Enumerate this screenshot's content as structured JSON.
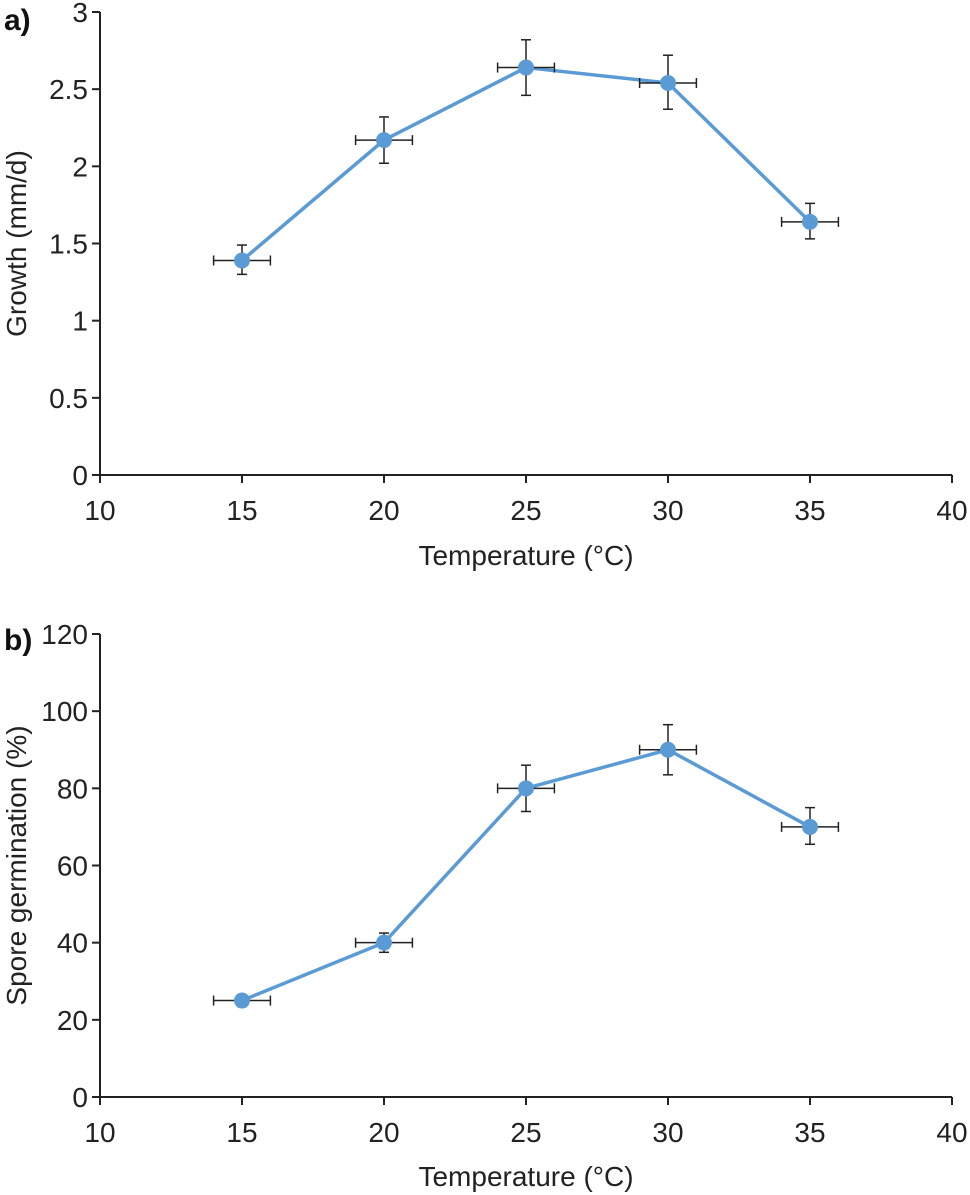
{
  "chart_data": [
    {
      "type": "line",
      "panel_label": "a)",
      "xlabel": "Temperature (°C)",
      "ylabel": "Growth (mm/d)",
      "xlim": [
        10,
        40
      ],
      "ylim": [
        0,
        3
      ],
      "xticks": [
        10,
        15,
        20,
        25,
        30,
        35,
        40
      ],
      "yticks": [
        0,
        0.5,
        1,
        1.5,
        2,
        2.5,
        3
      ],
      "ytick_labels": [
        "0",
        "0.5",
        "1",
        "1.5",
        "2",
        "2.5",
        "3"
      ],
      "grid": false,
      "color": "#5b9bd5",
      "x": [
        15,
        20,
        25,
        30,
        35
      ],
      "y": [
        1.39,
        2.17,
        2.64,
        2.54,
        1.64
      ],
      "x_err": [
        1,
        1,
        1,
        1,
        1
      ],
      "y_err_low": [
        0.09,
        0.15,
        0.18,
        0.17,
        0.11
      ],
      "y_err_high": [
        0.1,
        0.15,
        0.18,
        0.18,
        0.12
      ]
    },
    {
      "type": "line",
      "panel_label": "b)",
      "xlabel": "Temperature (°C)",
      "ylabel": "Spore germination (%)",
      "xlim": [
        10,
        40
      ],
      "ylim": [
        0,
        120
      ],
      "xticks": [
        10,
        15,
        20,
        25,
        30,
        35,
        40
      ],
      "yticks": [
        0,
        20,
        40,
        60,
        80,
        100,
        120
      ],
      "ytick_labels": [
        "0",
        "20",
        "40",
        "60",
        "80",
        "100",
        "120"
      ],
      "grid": false,
      "color": "#5b9bd5",
      "x": [
        15,
        20,
        25,
        30,
        35
      ],
      "y": [
        25,
        40,
        80,
        90,
        70
      ],
      "x_err": [
        1,
        1,
        1,
        1,
        1
      ],
      "y_err_low": [
        1.5,
        2.5,
        6,
        6.5,
        4.5
      ],
      "y_err_high": [
        1.5,
        2.5,
        6,
        6.5,
        5
      ]
    }
  ]
}
